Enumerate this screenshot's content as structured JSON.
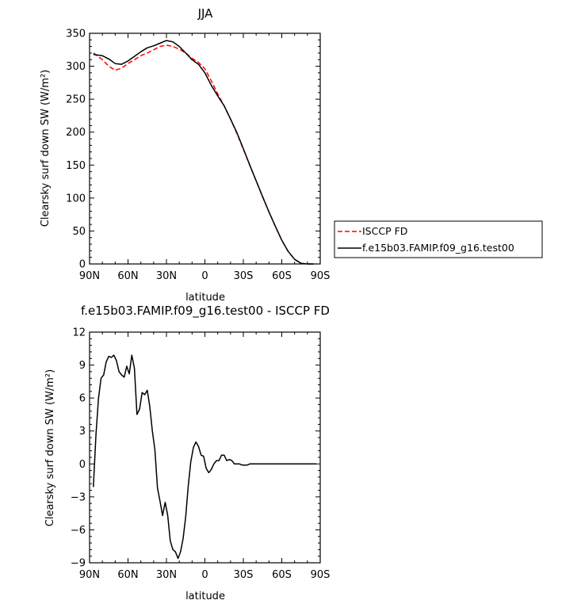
{
  "chart_data": [
    {
      "type": "line",
      "title": "JJA",
      "xlabel": "latitude",
      "ylabel": "Clearsky surf down SW (W/m²)",
      "xlim": [
        90,
        -90
      ],
      "ylim": [
        0,
        350
      ],
      "xticks": [
        90,
        60,
        30,
        0,
        -30,
        -60,
        -90
      ],
      "xtick_labels": [
        "90N",
        "60N",
        "30N",
        "0",
        "30S",
        "60S",
        "90S"
      ],
      "yticks": [
        0,
        50,
        100,
        150,
        200,
        250,
        300,
        350
      ],
      "ytick_labels": [
        "0",
        "50",
        "100",
        "150",
        "200",
        "250",
        "300",
        "350"
      ],
      "legend_position": "right",
      "series": [
        {
          "name": "ISCCP FD",
          "color": "#ff0000",
          "dash": "dashed",
          "x": [
            87,
            80,
            75,
            70,
            65,
            60,
            55,
            50,
            45,
            40,
            35,
            30,
            25,
            20,
            15,
            10,
            5,
            0,
            -5,
            -10,
            -15,
            -20,
            -25,
            -30,
            -35,
            -40,
            -45,
            -50,
            -55,
            -60,
            -65,
            -70,
            -75,
            -80,
            -85
          ],
          "y": [
            320,
            310,
            300,
            294,
            297,
            304,
            310,
            316,
            320,
            325,
            330,
            332,
            330,
            326,
            320,
            312,
            306,
            296,
            278,
            258,
            240,
            220,
            198,
            174,
            150,
            126,
            102,
            79,
            57,
            36,
            19,
            7,
            1,
            0,
            0
          ]
        },
        {
          "name": "f.e15b03.FAMIP.f09_g16.test00",
          "color": "#000000",
          "dash": "solid",
          "x": [
            87,
            80,
            75,
            70,
            65,
            60,
            55,
            50,
            45,
            40,
            35,
            30,
            25,
            20,
            15,
            10,
            5,
            0,
            -5,
            -10,
            -15,
            -20,
            -25,
            -30,
            -35,
            -40,
            -45,
            -50,
            -55,
            -60,
            -65,
            -70,
            -75,
            -80,
            -85
          ],
          "y": [
            318,
            316,
            311,
            304,
            303,
            308,
            315,
            322,
            328,
            331,
            335,
            339,
            337,
            330,
            320,
            310,
            303,
            290,
            271,
            255,
            240,
            220,
            199,
            175,
            150,
            126,
            102,
            79,
            57,
            36,
            19,
            7,
            1,
            0,
            0
          ]
        }
      ]
    },
    {
      "type": "line",
      "title": "f.e15b03.FAMIP.f09_g16.test00 - ISCCP FD",
      "xlabel": "latitude",
      "ylabel": "Clearsky surf down SW (W/m²)",
      "xlim": [
        90,
        -90
      ],
      "ylim": [
        -9,
        12
      ],
      "xticks": [
        90,
        60,
        30,
        0,
        -30,
        -60,
        -90
      ],
      "xtick_labels": [
        "90N",
        "60N",
        "30N",
        "0",
        "30S",
        "60S",
        "90S"
      ],
      "yticks": [
        -9,
        -6,
        -3,
        0,
        3,
        6,
        9,
        12
      ],
      "ytick_labels": [
        "−9",
        "−6",
        "−3",
        "0",
        "3",
        "6",
        "9",
        "12"
      ],
      "series": [
        {
          "color": "#000000",
          "dash": "solid",
          "x": [
            87,
            85,
            83,
            81,
            79,
            77,
            75,
            73,
            71,
            69,
            67,
            65,
            63,
            61,
            59,
            57,
            55,
            53,
            51,
            49,
            47,
            45,
            43,
            41,
            39,
            37,
            35,
            33,
            31,
            29,
            27,
            25,
            23,
            21,
            19,
            17,
            15,
            13,
            11,
            9,
            7,
            5,
            3,
            1,
            -1,
            -3,
            -5,
            -7,
            -9,
            -11,
            -13,
            -15,
            -17,
            -19,
            -21,
            -23,
            -25,
            -27,
            -29,
            -31,
            -33,
            -35,
            -37,
            -39,
            -41,
            -43,
            -45,
            -47,
            -49,
            -51,
            -53,
            -55,
            -57,
            -59,
            -61,
            -63,
            -65,
            -67,
            -69,
            -71,
            -73,
            -75,
            -77,
            -79,
            -81,
            -83,
            -85,
            -87
          ],
          "y": [
            -2.1,
            2.7,
            6.0,
            7.8,
            8.1,
            9.3,
            9.8,
            9.7,
            9.9,
            9.4,
            8.4,
            8.1,
            7.9,
            8.9,
            8.2,
            9.9,
            8.7,
            4.5,
            5.0,
            6.5,
            6.3,
            6.7,
            5.2,
            3.0,
            1.3,
            -2.2,
            -3.4,
            -4.7,
            -3.5,
            -4.7,
            -7.0,
            -7.8,
            -8.0,
            -8.6,
            -8.0,
            -6.8,
            -4.8,
            -2.0,
            0.2,
            1.5,
            2.0,
            1.6,
            0.8,
            0.7,
            -0.4,
            -0.8,
            -0.5,
            0.0,
            0.3,
            0.3,
            0.8,
            0.8,
            0.3,
            0.4,
            0.3,
            0.0,
            0.0,
            0.0,
            -0.1,
            -0.1,
            -0.1,
            0.0,
            0.0,
            0.0,
            0.0,
            0.0,
            0.0,
            0.0,
            0.0,
            0.0,
            0.0,
            0.0,
            0.0,
            0.0,
            0.0,
            0.0,
            0.0,
            0.0,
            0.0,
            0.0,
            0.0,
            0.0,
            0.0,
            0.0,
            0.0,
            0.0,
            0.0,
            0.0
          ]
        }
      ]
    }
  ]
}
